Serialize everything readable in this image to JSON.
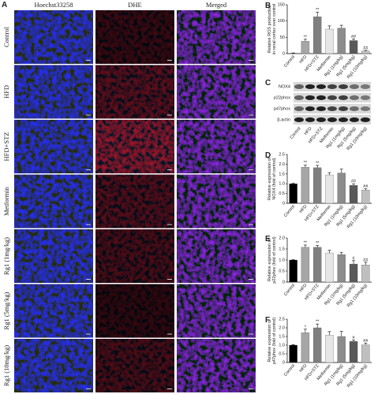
{
  "panel_a": {
    "label": "A",
    "columns": [
      "Hoechst33258",
      "DHE",
      "Merged"
    ],
    "rows": [
      "Control",
      "HFD",
      "HFD+STZ",
      "Metformin",
      "Rg1 (1mg/kg)",
      "Rg1 (5mg/kg)",
      "Rg1 (10mg/kg)"
    ]
  },
  "blot": {
    "label": "C",
    "bands": [
      "NOX4",
      "p22phox",
      "p47phox",
      "β-actin"
    ],
    "categories": [
      "Control",
      "HFD",
      "HFD+STZ",
      "Metformin",
      "Rg1 (1mg/kg)",
      "Rg1 (5mg/kg)",
      "Rg1 (10mg/kg)"
    ]
  },
  "chart_data": [
    {
      "type": "bar",
      "label": "B",
      "ylabel": [
        "Relative ROS production",
        "in renal cortex over control"
      ],
      "categories": [
        "Control",
        "HFD",
        "HFD+STZ",
        "Metformin",
        "Rg1 (1mg/kg)",
        "Rg1 (5mg/kg)",
        "Rg1 (10mg/kg)"
      ],
      "values": [
        1,
        38,
        113,
        75,
        78,
        40,
        8
      ],
      "errors": [
        1,
        6,
        14,
        10,
        9,
        5,
        2
      ],
      "annotations": [
        null,
        "**",
        "**",
        null,
        null,
        "##",
        "##"
      ],
      "colors": [
        "#000000",
        "#a6a6a6",
        "#7f7f7f",
        "#e6e6e6",
        "#8c8c8c",
        "#595959",
        "#bfbfbf"
      ],
      "ylim": [
        0,
        150
      ],
      "yticks": [
        0,
        50,
        100,
        150
      ]
    },
    {
      "type": "bar",
      "label": "D",
      "ylabel": [
        "Relative expression of",
        "NOX4 (fold of control)"
      ],
      "categories": [
        "Control",
        "HFD",
        "HFD+STZ",
        "Metformin",
        "Rg1 (1mg/kg)",
        "Rg1 (5mg/kg)",
        "Rg1 (10mg/kg)"
      ],
      "values": [
        1,
        1.85,
        1.82,
        1.45,
        1.55,
        0.92,
        0.68
      ],
      "errors": [
        0.02,
        0.1,
        0.12,
        0.12,
        0.2,
        0.08,
        0.06
      ],
      "annotations": [
        null,
        "**",
        "**",
        null,
        null,
        "##",
        "##"
      ],
      "colors": [
        "#000000",
        "#a6a6a6",
        "#7f7f7f",
        "#e6e6e6",
        "#8c8c8c",
        "#595959",
        "#bfbfbf"
      ],
      "ylim": [
        0,
        2.5
      ],
      "yticks": [
        0,
        0.5,
        {
          "value": 1,
          "label": "1.0"
        },
        1.5,
        {
          "value": 2,
          "label": "2.0"
        },
        2.5
      ]
    },
    {
      "type": "bar",
      "label": "E",
      "ylabel": [
        "Relative expression of",
        "p22phox (fold of control)"
      ],
      "categories": [
        "Control",
        "HFD",
        "HFD+STZ",
        "Metformin",
        "Rg1 (1mg/kg)",
        "Rg1 (5mg/kg)",
        "Rg1 (10mg/kg)"
      ],
      "values": [
        1,
        1.58,
        1.58,
        1.32,
        1.25,
        0.82,
        0.78
      ],
      "errors": [
        0.02,
        0.1,
        0.08,
        0.12,
        0.1,
        0.15,
        0.12
      ],
      "annotations": [
        null,
        "**",
        "**",
        null,
        null,
        "#",
        "##"
      ],
      "colors": [
        "#000000",
        "#a6a6a6",
        "#7f7f7f",
        "#e6e6e6",
        "#8c8c8c",
        "#595959",
        "#bfbfbf"
      ],
      "ylim": [
        0,
        2
      ],
      "yticks": [
        0,
        0.5,
        {
          "value": 1,
          "label": "1.0"
        },
        1.5,
        {
          "value": 2,
          "label": "2.0"
        }
      ]
    },
    {
      "type": "bar",
      "label": "F",
      "ylabel": [
        "Relative expression of",
        "p47phox (fold of control)"
      ],
      "categories": [
        "Control",
        "HFD",
        "HFD+STZ",
        "Metformin",
        "Rg1 (1mg/kg)",
        "Rg1 (5mg/kg)",
        "Rg1 (10mg/kg)"
      ],
      "values": [
        1,
        1.72,
        2.0,
        1.58,
        1.5,
        1.22,
        1.02
      ],
      "errors": [
        0.03,
        0.2,
        0.22,
        0.2,
        0.3,
        0.08,
        0.1
      ],
      "annotations": [
        null,
        "*",
        "**",
        null,
        null,
        "#",
        "##"
      ],
      "colors": [
        "#000000",
        "#a6a6a6",
        "#7f7f7f",
        "#e6e6e6",
        "#8c8c8c",
        "#595959",
        "#bfbfbf"
      ],
      "ylim": [
        0,
        2.5
      ],
      "yticks": [
        0,
        0.5,
        {
          "value": 1,
          "label": "1.0"
        },
        1.5,
        {
          "value": 2,
          "label": "2.0"
        },
        2.5
      ]
    }
  ]
}
